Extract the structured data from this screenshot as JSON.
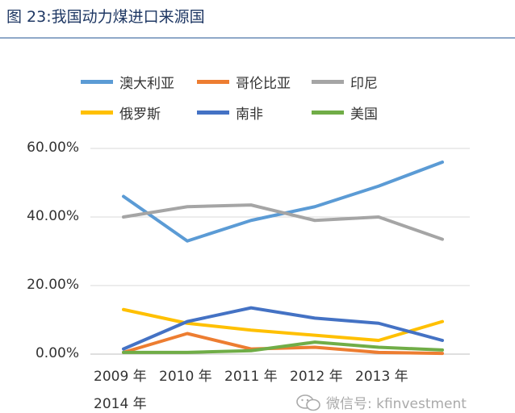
{
  "figure": {
    "title": "图 23:我国动力煤进口来源国"
  },
  "watermark": {
    "text": "微信号: kfinvestment",
    "icon": "wechat-icon"
  },
  "chart_data": {
    "type": "line",
    "title": "",
    "xlabel": "",
    "ylabel": "",
    "ylim": [
      0,
      0.6
    ],
    "y_ticks": [
      {
        "value": 0.6,
        "label": "60.00%"
      },
      {
        "value": 0.4,
        "label": "40.00%"
      },
      {
        "value": 0.2,
        "label": "20.00%"
      },
      {
        "value": 0.0,
        "label": "0.00%"
      }
    ],
    "categories": [
      "2009 年",
      "2010 年",
      "2011 年",
      "2012 年",
      "2013 年",
      "2014 年"
    ],
    "grid": true,
    "legend_position": "top",
    "series": [
      {
        "name": "澳大利亚",
        "color": "#5b9bd5",
        "values": [
          0.46,
          0.33,
          0.39,
          0.43,
          0.49,
          0.56
        ]
      },
      {
        "name": "哥伦比亚",
        "color": "#ed7d31",
        "values": [
          0.005,
          0.06,
          0.015,
          0.02,
          0.005,
          0.002
        ]
      },
      {
        "name": "印尼",
        "color": "#a5a5a5",
        "values": [
          0.4,
          0.43,
          0.435,
          0.39,
          0.4,
          0.335
        ]
      },
      {
        "name": "俄罗斯",
        "color": "#ffc000",
        "values": [
          0.13,
          0.09,
          0.07,
          0.055,
          0.04,
          0.095
        ]
      },
      {
        "name": "南非",
        "color": "#4472c4",
        "values": [
          0.015,
          0.095,
          0.135,
          0.105,
          0.09,
          0.04
        ]
      },
      {
        "name": "美国",
        "color": "#70ad47",
        "values": [
          0.005,
          0.005,
          0.01,
          0.035,
          0.02,
          0.012
        ]
      }
    ]
  }
}
